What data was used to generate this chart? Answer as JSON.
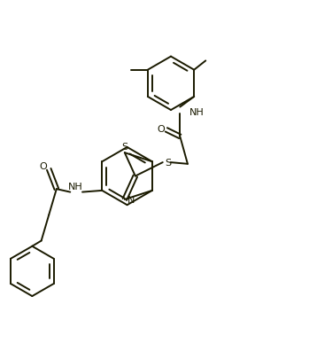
{
  "bg_color": "#ffffff",
  "line_color": "#1a1a00",
  "line_width": 1.4,
  "figsize": [
    3.49,
    4.06
  ],
  "dpi": 100,
  "xlim": [
    0,
    10
  ],
  "ylim": [
    0,
    11.6
  ]
}
